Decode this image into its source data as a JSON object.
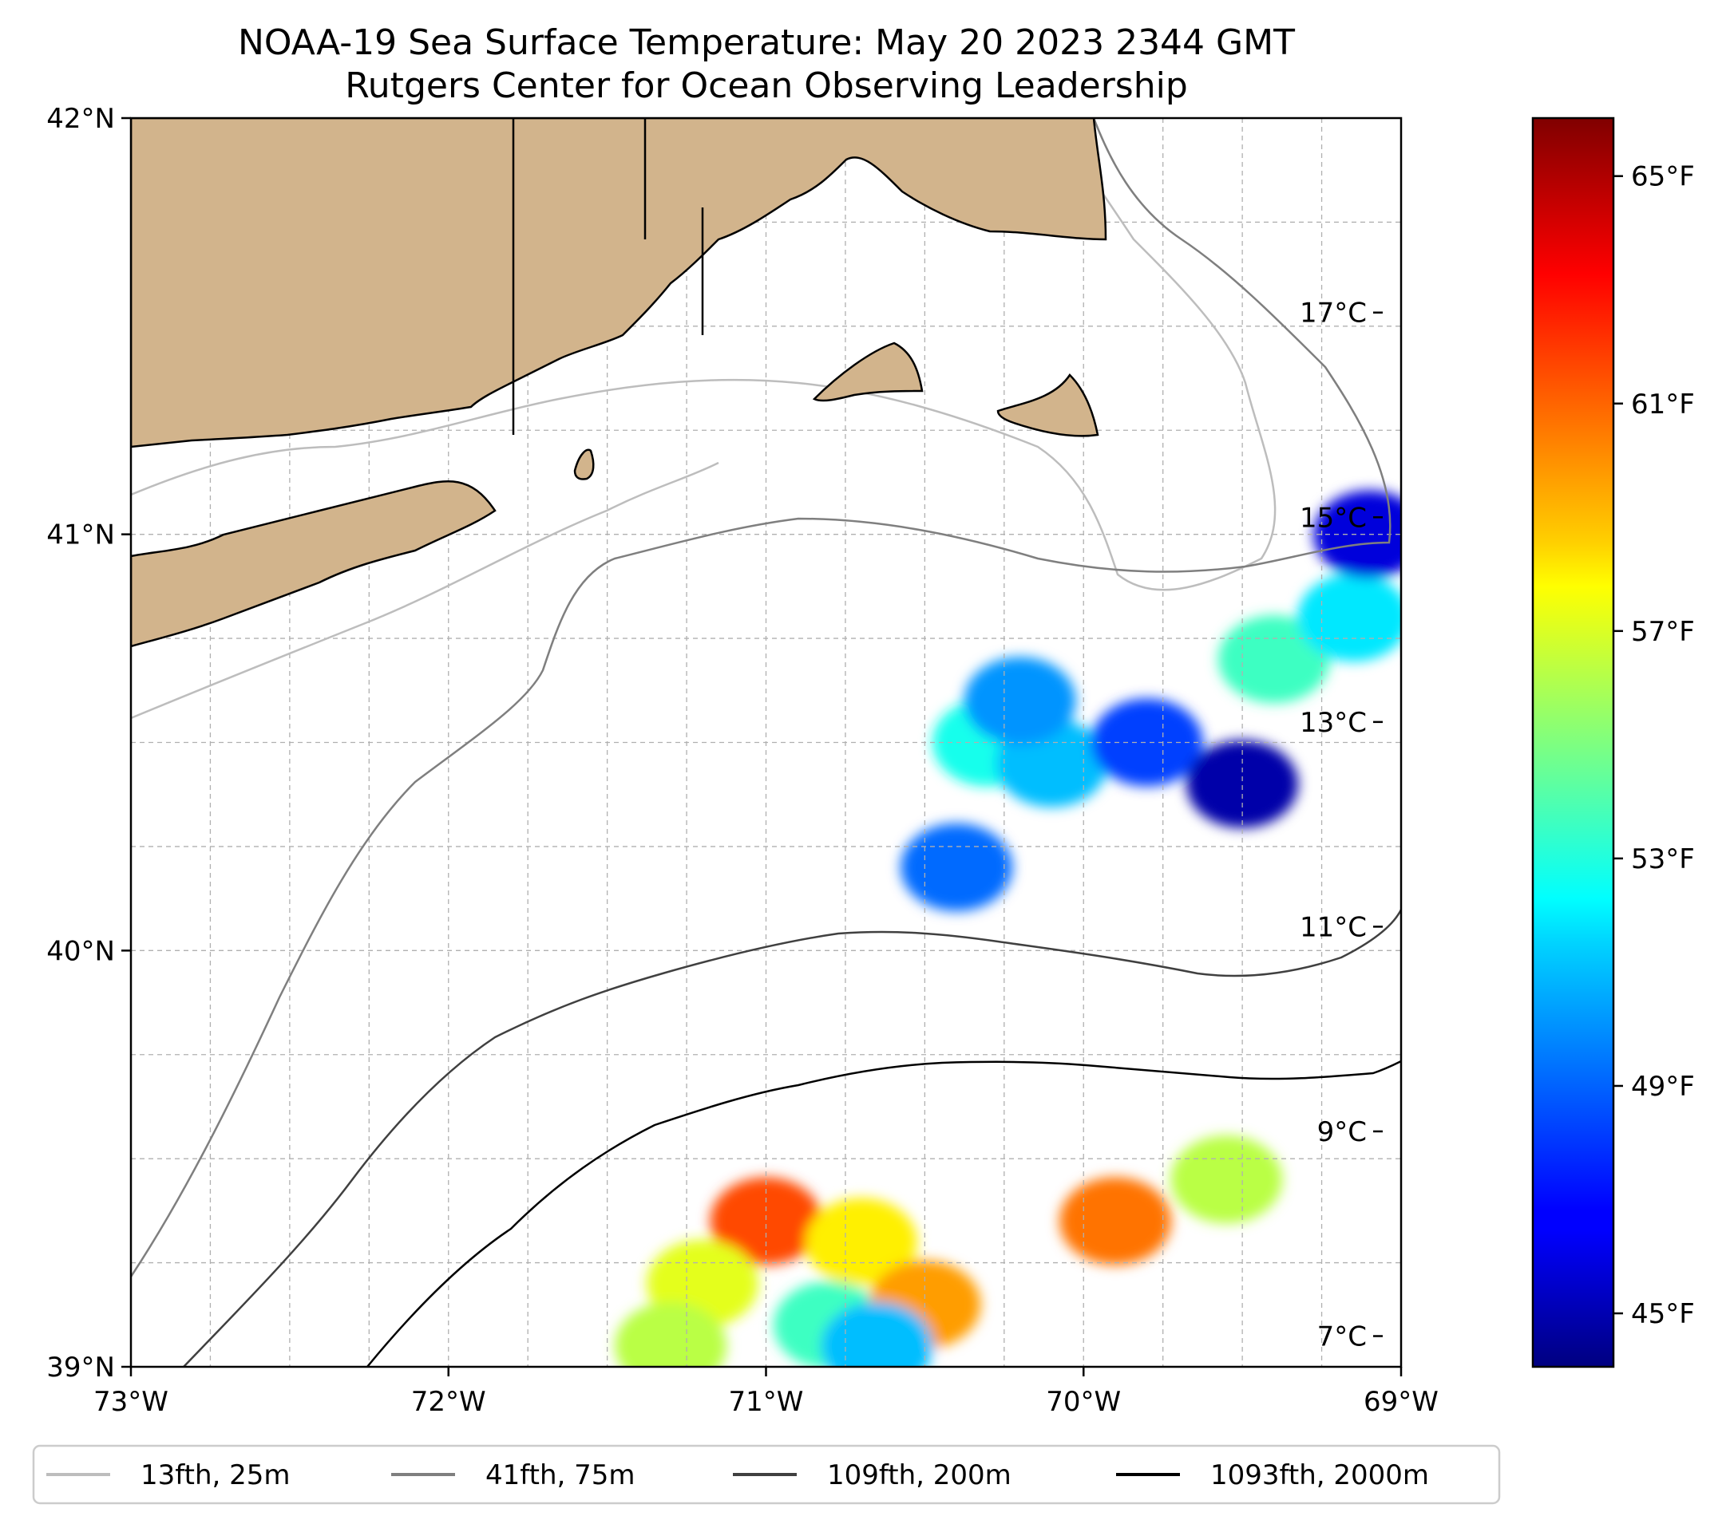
{
  "title": {
    "line1": "NOAA-19 Sea Surface Temperature: May 20 2023 2344 GMT",
    "line2": "Rutgers Center for Ocean Observing Leadership"
  },
  "map": {
    "lon_range": [
      -73,
      -69
    ],
    "lat_range": [
      39,
      42
    ],
    "x_ticks": [
      {
        "lon": -73,
        "label": "73°W"
      },
      {
        "lon": -72,
        "label": "72°W"
      },
      {
        "lon": -71,
        "label": "71°W"
      },
      {
        "lon": -70,
        "label": "70°W"
      },
      {
        "lon": -69,
        "label": "69°W"
      }
    ],
    "y_ticks": [
      {
        "lat": 42,
        "label": "42°N"
      },
      {
        "lat": 41,
        "label": "41°N"
      },
      {
        "lat": 40,
        "label": "40°N"
      },
      {
        "lat": 39,
        "label": "39°N"
      }
    ],
    "land_color": "#d2b48c",
    "gridlines": "dashed"
  },
  "colorbar": {
    "colormap": "jet",
    "range_celsius": [
      6.7,
      18.9
    ],
    "celsius_ticks": [
      {
        "value": 7,
        "label": "7°C"
      },
      {
        "value": 9,
        "label": "9°C"
      },
      {
        "value": 11,
        "label": "11°C"
      },
      {
        "value": 13,
        "label": "13°C"
      },
      {
        "value": 15,
        "label": "15°C"
      },
      {
        "value": 17,
        "label": "17°C"
      }
    ],
    "fahrenheit_ticks": [
      {
        "value": 45,
        "label": "45°F"
      },
      {
        "value": 49,
        "label": "49°F"
      },
      {
        "value": 53,
        "label": "53°F"
      },
      {
        "value": 57,
        "label": "57°F"
      },
      {
        "value": 61,
        "label": "61°F"
      },
      {
        "value": 65,
        "label": "65°F"
      }
    ]
  },
  "legend": {
    "items": [
      {
        "label": "13fth, 25m",
        "color": "#bdbdbd"
      },
      {
        "label": "41fth, 75m",
        "color": "#7f7f7f"
      },
      {
        "label": "109fth, 200m",
        "color": "#404040"
      },
      {
        "label": "1093fth, 2000m",
        "color": "#000000"
      }
    ]
  },
  "sst_patches": [
    {
      "lon": -70.3,
      "lat": 40.5,
      "temp_c": 11.5
    },
    {
      "lon": -70.1,
      "lat": 40.45,
      "temp_c": 10.5
    },
    {
      "lon": -70.2,
      "lat": 40.6,
      "temp_c": 10.0
    },
    {
      "lon": -69.8,
      "lat": 40.5,
      "temp_c": 9.0
    },
    {
      "lon": -69.5,
      "lat": 40.4,
      "temp_c": 7.2
    },
    {
      "lon": -69.4,
      "lat": 40.7,
      "temp_c": 12.0
    },
    {
      "lon": -69.15,
      "lat": 40.8,
      "temp_c": 11.0
    },
    {
      "lon": -69.1,
      "lat": 41.0,
      "temp_c": 7.8
    },
    {
      "lon": -70.4,
      "lat": 40.2,
      "temp_c": 9.5
    },
    {
      "lon": -71.0,
      "lat": 39.35,
      "temp_c": 16.5
    },
    {
      "lon": -70.7,
      "lat": 39.3,
      "temp_c": 14.5
    },
    {
      "lon": -71.2,
      "lat": 39.2,
      "temp_c": 14.0
    },
    {
      "lon": -70.8,
      "lat": 39.1,
      "temp_c": 12.0
    },
    {
      "lon": -70.5,
      "lat": 39.15,
      "temp_c": 15.5
    },
    {
      "lon": -71.3,
      "lat": 39.05,
      "temp_c": 13.5
    },
    {
      "lon": -70.65,
      "lat": 39.05,
      "temp_c": 10.5
    },
    {
      "lon": -69.55,
      "lat": 39.45,
      "temp_c": 13.5
    },
    {
      "lon": -69.9,
      "lat": 39.35,
      "temp_c": 16.0
    }
  ]
}
